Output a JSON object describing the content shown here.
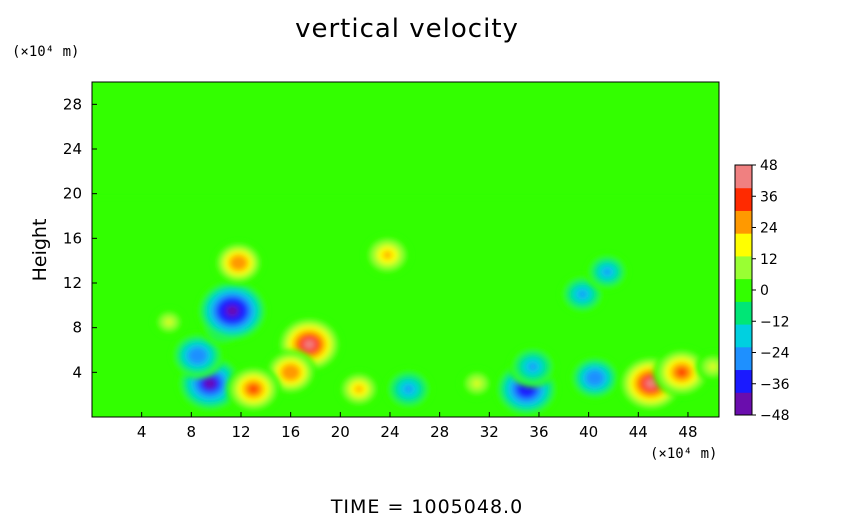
{
  "title": "vertical velocity",
  "y_unit": "(×10⁴ m)",
  "x_unit": "(×10⁴ m)",
  "time_label": "TIME  =  1005048.0",
  "chart_data": {
    "type": "heatmap",
    "title": "vertical velocity",
    "ylabel": "Height",
    "xlabel": "",
    "xlim": [
      0,
      50.5
    ],
    "ylim": [
      0,
      30
    ],
    "x_ticks": [
      4,
      8,
      12,
      16,
      20,
      24,
      28,
      32,
      36,
      40,
      44,
      48
    ],
    "y_ticks": [
      4,
      8,
      12,
      16,
      20,
      24,
      28
    ],
    "colorbar": {
      "min": -48,
      "max": 48,
      "ticks": [
        48,
        36,
        24,
        12,
        0,
        -12,
        -24,
        -36,
        -48
      ],
      "colors": [
        "#6a0dad",
        "#1a1aff",
        "#1e90ff",
        "#00d0e0",
        "#00e676",
        "#33ff00",
        "#99ff33",
        "#ffff00",
        "#ff9900",
        "#ff2a00",
        "#f08080"
      ]
    },
    "features": [
      {
        "x": 9.5,
        "y": 3.0,
        "value": -40
      },
      {
        "x": 8.5,
        "y": 5.5,
        "value": -30
      },
      {
        "x": 10.5,
        "y": 8.0,
        "value": -20
      },
      {
        "x": 11.3,
        "y": 9.5,
        "value": -44
      },
      {
        "x": 17.5,
        "y": 6.5,
        "value": 40
      },
      {
        "x": 16.0,
        "y": 4.0,
        "value": 30
      },
      {
        "x": 13.0,
        "y": 2.5,
        "value": 32
      },
      {
        "x": 21.5,
        "y": 2.5,
        "value": 22
      },
      {
        "x": 11.8,
        "y": 13.8,
        "value": 28
      },
      {
        "x": 23.8,
        "y": 14.5,
        "value": 26
      },
      {
        "x": 35.0,
        "y": 2.5,
        "value": -38
      },
      {
        "x": 35.5,
        "y": 4.5,
        "value": -26
      },
      {
        "x": 25.5,
        "y": 2.5,
        "value": -26
      },
      {
        "x": 40.5,
        "y": 3.5,
        "value": -28
      },
      {
        "x": 39.5,
        "y": 11.0,
        "value": -24
      },
      {
        "x": 41.5,
        "y": 13.0,
        "value": -22
      },
      {
        "x": 45.0,
        "y": 3.0,
        "value": 40
      },
      {
        "x": 47.5,
        "y": 4.0,
        "value": 34
      },
      {
        "x": 6.2,
        "y": 8.5,
        "value": 14
      },
      {
        "x": 31.0,
        "y": 3.0,
        "value": 16
      },
      {
        "x": 50.0,
        "y": 4.5,
        "value": 16
      }
    ]
  }
}
